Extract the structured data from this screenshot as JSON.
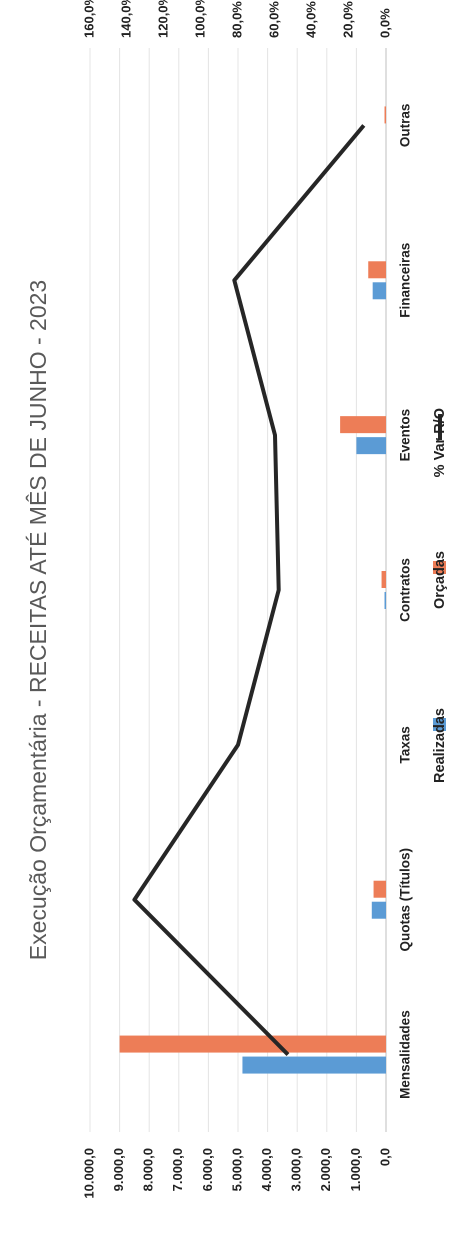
{
  "chart_data": {
    "type": "bar",
    "title": "Execução Orçamentária - RECEITAS ATÉ MÊS DE JUNHO - 2023",
    "categories": [
      "Mensalidades",
      "Quotas (Títulos)",
      "Taxas",
      "Contratos",
      "Eventos",
      "Financeiras",
      "Outras"
    ],
    "series": [
      {
        "name": "Realizadas",
        "kind": "bar",
        "axis": "left",
        "color": "#5B9BD5",
        "values": [
          4850,
          480,
          0,
          50,
          1000,
          450,
          0
        ]
      },
      {
        "name": "Orçadas",
        "kind": "bar",
        "axis": "left",
        "color": "#ED7D57",
        "values": [
          9000,
          420,
          0,
          150,
          1550,
          600,
          50
        ]
      },
      {
        "name": "% Var R/O",
        "kind": "line",
        "axis": "right",
        "color": "#262626",
        "values": [
          53,
          136,
          80,
          58,
          60,
          82,
          12
        ]
      }
    ],
    "y_left": {
      "min": 0,
      "max": 10000,
      "ticks": [
        "0,0",
        "1.000,0",
        "2.000,0",
        "3.000,0",
        "4.000,0",
        "5.000,0",
        "6.000,0",
        "7.000,0",
        "8.000,0",
        "9.000,0",
        "10.000,0"
      ]
    },
    "y_right": {
      "min": 0,
      "max": 160,
      "ticks": [
        "0,0%",
        "20,0%",
        "40,0%",
        "60,0%",
        "80,0%",
        "100,0%",
        "120,0%",
        "140,0%",
        "160,0%"
      ]
    },
    "grid": true,
    "legend_position": "bottom",
    "orientation": "rotated-90-clockwise"
  }
}
